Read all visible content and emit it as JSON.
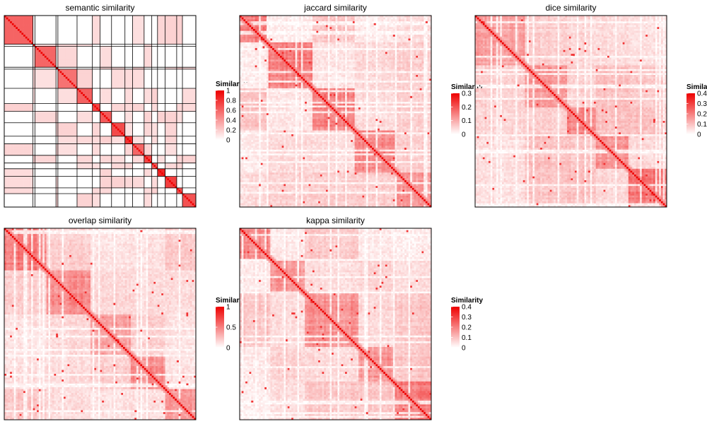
{
  "chart_data": [
    {
      "type": "heatmap",
      "title": "semantic similarity",
      "n": 100,
      "legend": {
        "title": "Similarity",
        "range": [
          0,
          1
        ],
        "ticks": [
          0,
          0.2,
          0.4,
          0.6,
          0.8,
          1
        ],
        "tick_labels": [
          "0",
          "0.2",
          "0.4",
          "0.6",
          "0.8",
          "1"
        ]
      },
      "low_color": "#ffffff",
      "high_color": "#ee0000",
      "grid": true,
      "block_boundaries": [
        0,
        15,
        16,
        27,
        28,
        38,
        46,
        50,
        56,
        63,
        67,
        73,
        77,
        80,
        84,
        90,
        93,
        100
      ],
      "diagonal_value": 1
    },
    {
      "type": "heatmap",
      "title": "jaccard similarity",
      "n": 100,
      "legend": {
        "title": "Similarity",
        "range": [
          0,
          0.3
        ],
        "ticks": [
          0,
          0.1,
          0.2,
          0.3
        ],
        "tick_labels": [
          "0",
          "0.1",
          "0.2",
          "0.3"
        ]
      },
      "low_color": "#ffffff",
      "high_color": "#ee0000",
      "grid": false,
      "block_boundaries": [
        0,
        14,
        38,
        60,
        82,
        100
      ],
      "diagonal_value": 0.3
    },
    {
      "type": "heatmap",
      "title": "dice similarity",
      "n": 100,
      "legend": {
        "title": "Similarity",
        "range": [
          0,
          0.4
        ],
        "ticks": [
          0,
          0.1,
          0.2,
          0.3,
          0.4
        ],
        "tick_labels": [
          "0",
          "0.1",
          "0.2",
          "0.3",
          "0.4"
        ]
      },
      "low_color": "#ffffff",
      "high_color": "#ee0000",
      "grid": false,
      "block_boundaries": [
        0,
        26,
        48,
        63,
        80,
        100
      ],
      "diagonal_value": 0.4
    },
    {
      "type": "heatmap",
      "title": "overlap similarity",
      "n": 100,
      "legend": {
        "title": "Similarity",
        "range": [
          0,
          1
        ],
        "ticks": [
          0,
          0.5,
          1
        ],
        "tick_labels": [
          "0",
          "0.5",
          "1"
        ]
      },
      "low_color": "#ffffff",
      "high_color": "#ee0000",
      "grid": false,
      "block_boundaries": [
        0,
        22,
        45,
        66,
        84,
        100
      ],
      "diagonal_value": 1
    },
    {
      "type": "heatmap",
      "title": "kappa similarity",
      "n": 100,
      "legend": {
        "title": "Similarity",
        "range": [
          0,
          0.4
        ],
        "ticks": [
          0,
          0.1,
          0.2,
          0.3,
          0.4
        ],
        "tick_labels": [
          "0",
          "0.1",
          "0.2",
          "0.3",
          "0.4"
        ]
      },
      "low_color": "#ffffff",
      "high_color": "#ee0000",
      "grid": false,
      "block_boundaries": [
        0,
        16,
        34,
        62,
        80,
        100
      ],
      "diagonal_value": 0.4
    }
  ]
}
